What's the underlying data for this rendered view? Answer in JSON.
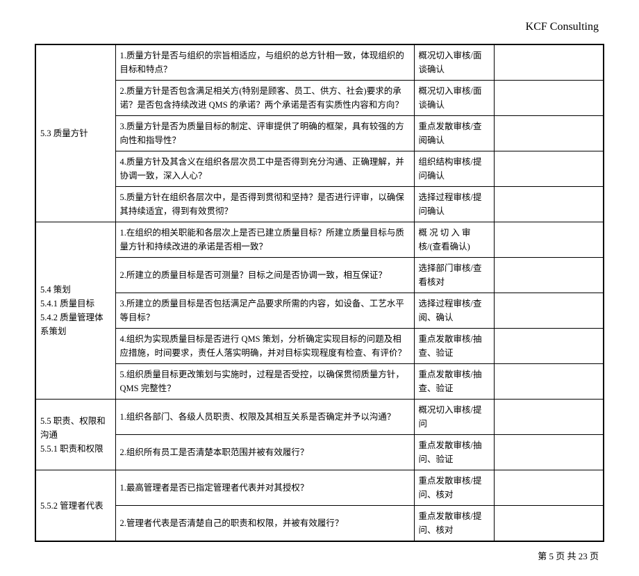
{
  "header": {
    "title": "KCF  Consulting"
  },
  "footer": {
    "text": "第 5 页 共 23 页"
  },
  "sections": [
    {
      "label": "5.3 质量方针",
      "rows": [
        {
          "q": "1.质量方针是否与组织的宗旨相适应，与组织的总方针相一致，体现组织的目标和特点？",
          "m": "概况切入审核/面谈确认"
        },
        {
          "q": "2.质量方针是否包含满足相关方(特别是顾客、员工、供方、社会)要求的承诺？是否包含持续改进 QMS 的承诺？两个承诺是否有实质性内容和方向？",
          "m": "概况切入审核/面谈确认"
        },
        {
          "q": "3.质量方针是否为质量目标的制定、评审提供了明确的框架，具有较强的方向性和指导性？",
          "m": "重点发散审核/查阅确认"
        },
        {
          "q": "4.质量方针及其含义在组织各层次员工中是否得到充分沟通、正确理解，并协调一致，深入人心？",
          "m": "组织结构审核/提问确认"
        },
        {
          "q": "5.质量方针在组织各层次中，是否得到贯彻和坚持？是否进行评审，以确保其持续适宜，得到有效贯彻？",
          "m": "选择过程审核/提问确认"
        }
      ]
    },
    {
      "label": "5.4 策划\n5.4.1 质量目标\n5.4.2 质量管理体系策划",
      "rows": [
        {
          "q": "1.在组织的相关职能和各层次上是否已建立质量目标？所建立质量目标与质量方针和持续改进的承诺是否相一致？",
          "m": "概 况 切 入 审 核/(查看确认)"
        },
        {
          "q": "2.所建立的质量目标是否可测量？目标之间是否协调一致，相互保证？",
          "m": "选择部门审核/查看核对"
        },
        {
          "q": "3.所建立的质量目标是否包括满足产品要求所需的内容，如设备、工艺水平等目标？",
          "m": "选择过程审核/查阅、确认"
        },
        {
          "q": "4.组织为实现质量目标是否进行 QMS 策划，分析确定实现目标的问题及相应措施，时间要求，责任人落实明确，并对目标实现程度有检查、有评价？",
          "m": "重点发散审核/抽查、验证"
        },
        {
          "q": "5.组织质量目标更改策划与实施时，过程是否受控，以确保贯彻质量方针，QMS 完整性？",
          "m": "重点发散审核/抽查、验证"
        }
      ]
    },
    {
      "label": "5.5 职责、权限和沟通\n5.5.1 职责和权限",
      "rows": [
        {
          "q": "1.组织各部门、各级人员职责、权限及其相互关系是否确定并予以沟通？",
          "m": "概况切入审核/提问"
        },
        {
          "q": "2.组织所有员工是否清楚本职范围并被有效履行？",
          "m": "重点发散审核/抽问、验证"
        }
      ]
    },
    {
      "label": "5.5.2 管理者代表",
      "rows": [
        {
          "q": "1.最高管理者是否已指定管理者代表并对其授权？",
          "m": "重点发散审核/提问、核对"
        },
        {
          "q": "2.管理者代表是否清楚自己的职责和权限，并被有效履行？",
          "m": "重点发散审核/提问、核对"
        }
      ]
    }
  ]
}
